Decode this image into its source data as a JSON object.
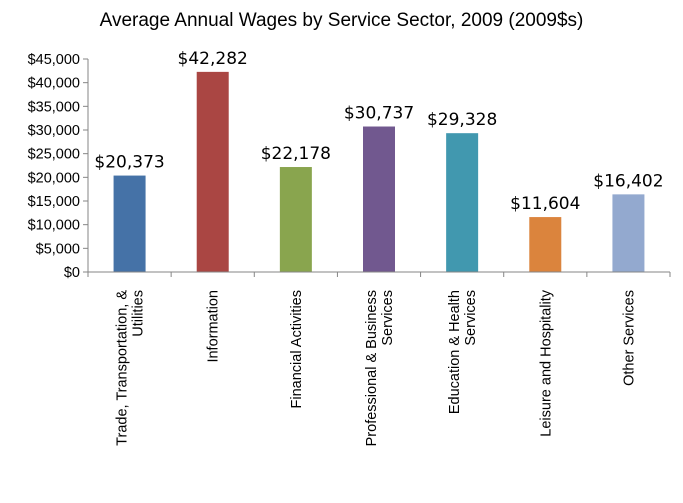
{
  "chart_data": {
    "type": "bar",
    "title": "Average Annual Wages by Service Sector, 2009 (2009$s)",
    "xlabel": "",
    "ylabel": "",
    "ylim": [
      0,
      45000
    ],
    "y_ticks": [
      0,
      5000,
      10000,
      15000,
      20000,
      25000,
      30000,
      35000,
      40000,
      45000
    ],
    "y_tick_labels": [
      "$0",
      "$5,000",
      "$10,000",
      "$15,000",
      "$20,000",
      "$25,000",
      "$30,000",
      "$35,000",
      "$40,000",
      "$45,000"
    ],
    "grid": false,
    "legend": "none",
    "categories": [
      [
        "Trade, Transportation, &",
        "Utilities"
      ],
      [
        "Information"
      ],
      [
        "Financial Activities"
      ],
      [
        "Professional & Business",
        "Services"
      ],
      [
        "Education & Health",
        "Services"
      ],
      [
        "Leisure and Hospitality"
      ],
      [
        "Other Services"
      ]
    ],
    "values": [
      20373,
      42282,
      22178,
      30737,
      29328,
      11604,
      16402
    ],
    "data_labels": [
      "$20,373",
      "$42,282",
      "$22,178",
      "$30,737",
      "$29,328",
      "$11,604",
      "$16,402"
    ],
    "colors": [
      "#4572A7",
      "#AA4643",
      "#89A54E",
      "#71588F",
      "#4198AF",
      "#DB843D",
      "#93A9CF"
    ],
    "axis_color": "#868686"
  }
}
